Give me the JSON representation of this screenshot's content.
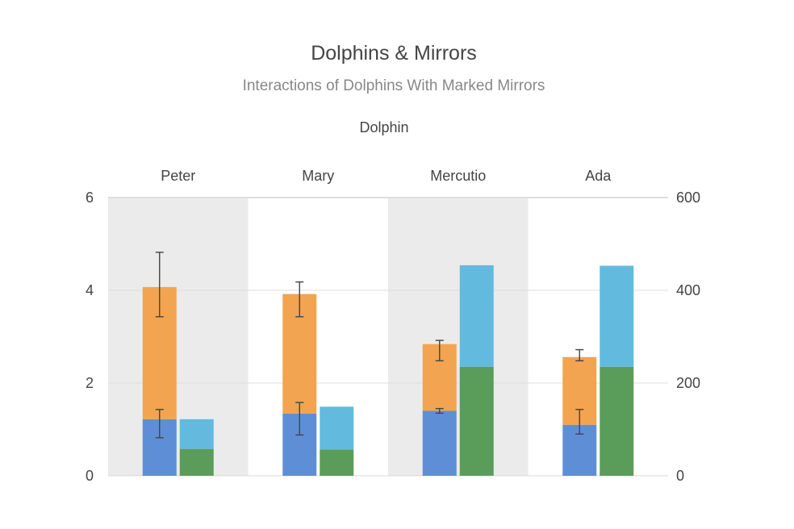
{
  "chart_data": {
    "type": "bar",
    "title": "Dolphins & Mirrors",
    "subtitle": "Interactions of Dolphins With Marked Mirrors",
    "x_axis_title": "Dolphin",
    "categories": [
      "Peter",
      "Mary",
      "Mercutio",
      "Ada"
    ],
    "stacked": true,
    "left_axis": {
      "ylim": [
        0,
        6
      ],
      "ticks": [
        "0",
        "2",
        "4",
        "6"
      ]
    },
    "right_axis": {
      "ylim": [
        0,
        600
      ],
      "ticks": [
        "0",
        "200",
        "400",
        "600"
      ]
    },
    "stacks": [
      {
        "axis": "left",
        "series": [
          {
            "color": "#5e8fd6",
            "values": [
              1.22,
              1.34,
              1.4,
              1.1
            ],
            "error_low": [
              0.82,
              0.88,
              1.35,
              0.9
            ],
            "error_high": [
              1.43,
              1.58,
              1.45,
              1.43
            ]
          },
          {
            "color": "#f2a450",
            "values": [
              2.85,
              2.58,
              1.44,
              1.46
            ],
            "error_low": [
              3.43,
              3.43,
              2.48,
              2.48
            ],
            "error_high": [
              4.82,
              4.18,
              2.92,
              2.72
            ]
          }
        ]
      },
      {
        "axis": "right",
        "series": [
          {
            "color": "#5a9c5a",
            "values": [
              58,
              57,
              235,
              235
            ]
          },
          {
            "color": "#62bbde",
            "values": [
              64,
              92,
              219,
              218
            ]
          }
        ]
      }
    ],
    "grid": true,
    "legend": "none",
    "band_color": "#ebebeb"
  }
}
